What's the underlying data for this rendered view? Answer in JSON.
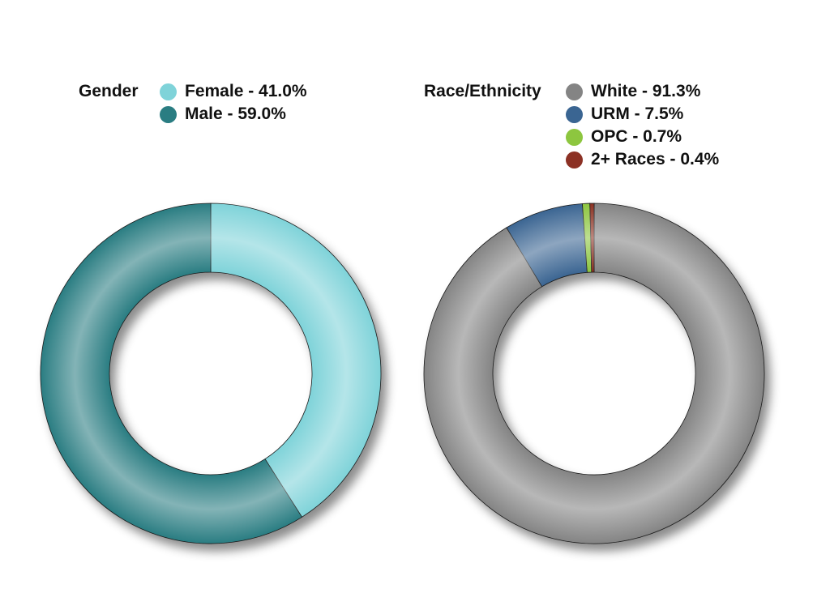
{
  "chart_data": [
    {
      "type": "pie",
      "title": "Gender",
      "categories": [
        "Female",
        "Male"
      ],
      "values": [
        41.0,
        59.0
      ],
      "labels": [
        "Female - 41.0%",
        "Male - 59.0%"
      ],
      "colors": [
        "#7fd3d9",
        "#2a7d82"
      ],
      "donut": true,
      "legend_position": "top"
    },
    {
      "type": "pie",
      "title": "Race/Ethnicity",
      "categories": [
        "White",
        "URM",
        "OPC",
        "2+ Races"
      ],
      "values": [
        91.3,
        7.5,
        0.7,
        0.4
      ],
      "labels": [
        "White - 91.3%",
        "URM - 7.5%",
        "OPC - 0.7%",
        "2+ Races - 0.4%"
      ],
      "colors": [
        "#848484",
        "#3a6592",
        "#8dc63f",
        "#8c3124"
      ],
      "donut": true,
      "legend_position": "top"
    }
  ]
}
